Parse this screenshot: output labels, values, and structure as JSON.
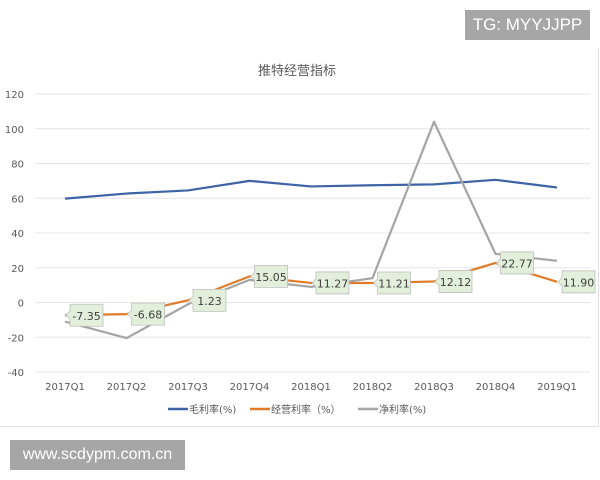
{
  "watermarks": {
    "top": "TG: MYYJJPP",
    "bottom": "www.scdypm.com.cn"
  },
  "chart_data": {
    "type": "line",
    "title": "推特经营指标",
    "categories": [
      "2017Q1",
      "2017Q2",
      "2017Q3",
      "2017Q4",
      "2018Q1",
      "2018Q2",
      "2018Q3",
      "2018Q4",
      "2019Q1"
    ],
    "ylim": [
      -40,
      120
    ],
    "yticks": [
      -40,
      -20,
      0,
      20,
      40,
      60,
      80,
      100,
      120
    ],
    "grid": true,
    "legend_position": "bottom",
    "series": [
      {
        "name": "毛利率(%)",
        "color": "#3e64a6",
        "values": [
          59.8,
          62.7,
          64.5,
          70.0,
          66.8,
          67.5,
          68.0,
          70.6,
          66.2
        ],
        "labels": false
      },
      {
        "name": "经营利率（%）",
        "color": "#e07b2a",
        "values": [
          -7.35,
          -6.68,
          1.23,
          15.05,
          11.27,
          11.21,
          12.12,
          22.77,
          11.9
        ],
        "labels": true
      },
      {
        "name": "净利率(%)",
        "color": "#a5a5a5",
        "values": [
          -11.0,
          -20.5,
          -1.0,
          13.0,
          9.0,
          14.0,
          104.0,
          28.0,
          24.0
        ],
        "labels": false
      }
    ],
    "label_style": {
      "fill": "#e2efda",
      "stroke": "#bfbfbf",
      "text": "#404040"
    }
  }
}
